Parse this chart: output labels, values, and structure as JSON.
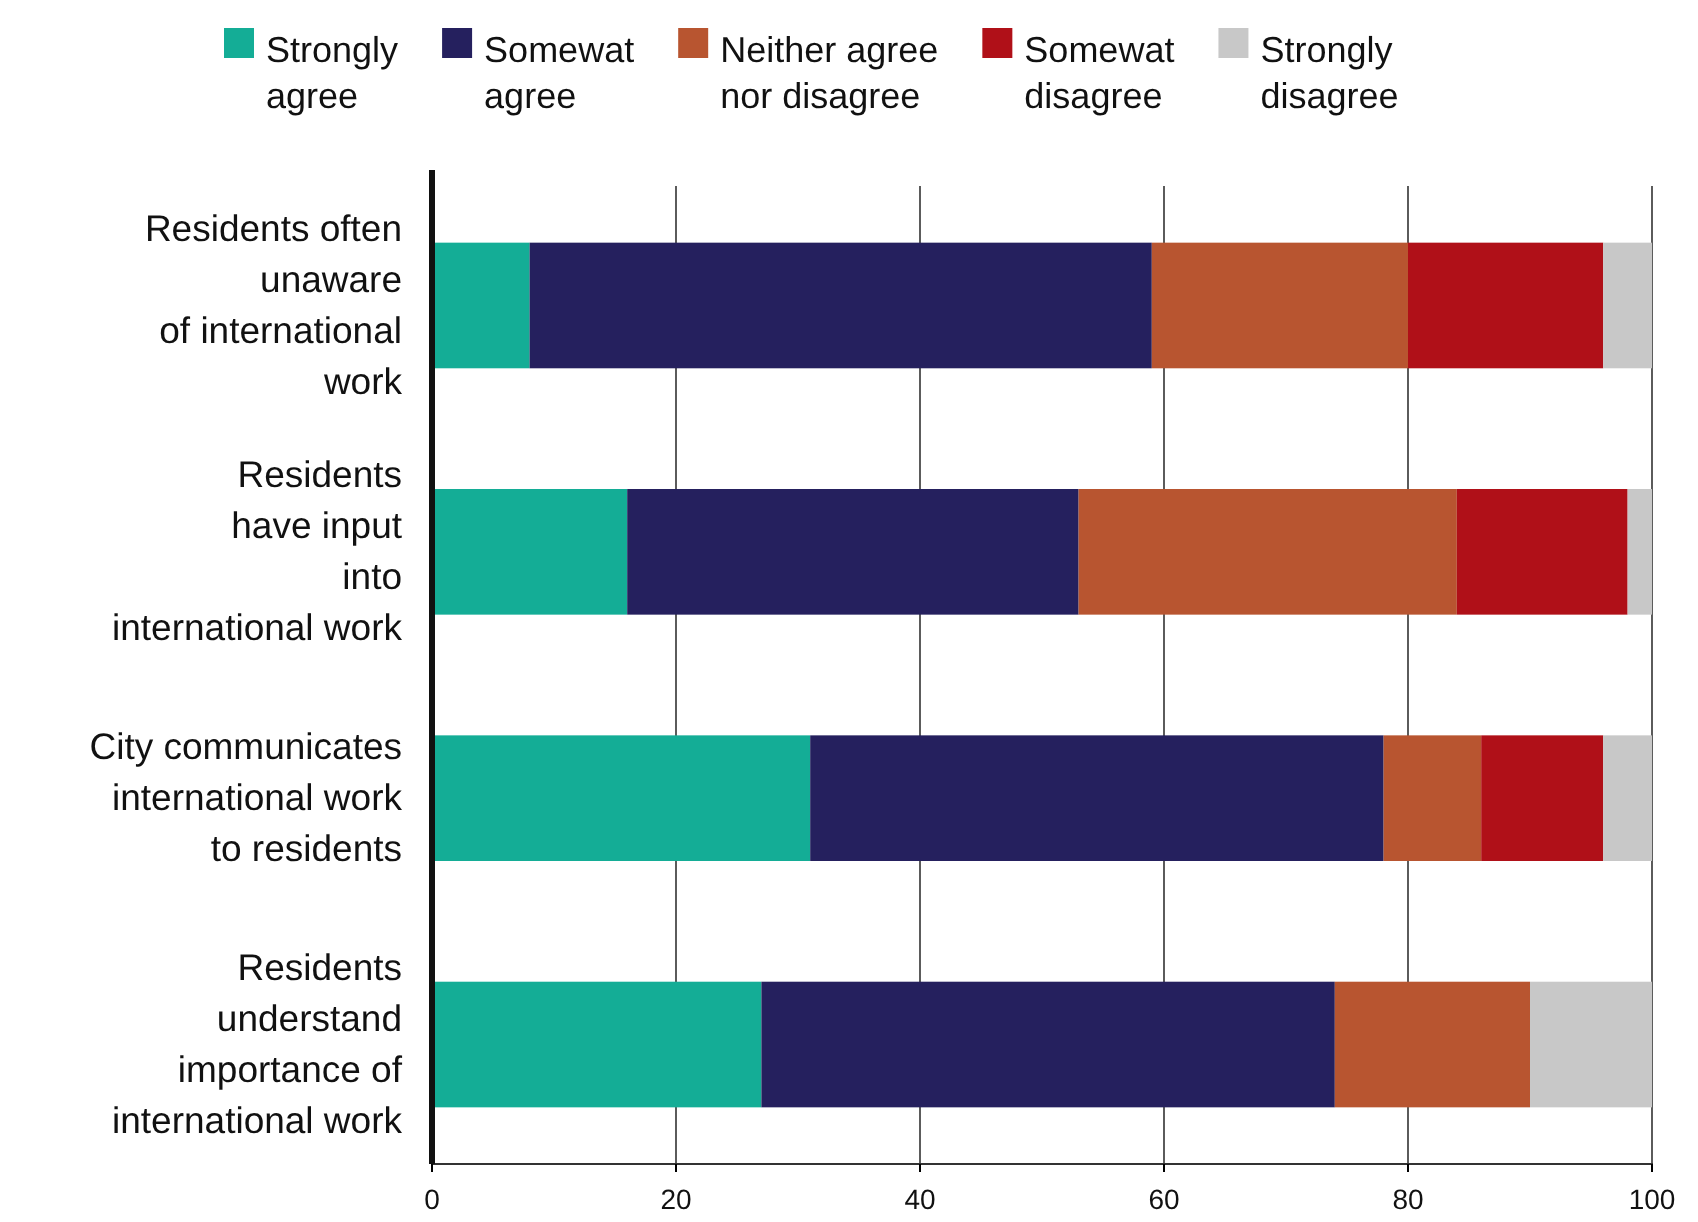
{
  "chart_data": {
    "type": "bar",
    "orientation": "horizontal",
    "stacked": true,
    "categories": [
      "Residents often\nunaware\nof international\nwork",
      "Residents\nhave input\ninto\ninternational work",
      "City communicates\ninternational work\nto residents",
      "Residents\nunderstand\nimportance of\ninternational work"
    ],
    "series": [
      {
        "name": "Strongly\nagree",
        "color": "#14ad96",
        "values": [
          8,
          16,
          31,
          27
        ]
      },
      {
        "name": "Somewat\nagree",
        "color": "#25205e",
        "values": [
          51,
          37,
          47,
          47
        ]
      },
      {
        "name": "Neither agree\nnor disagree",
        "color": "#b85530",
        "values": [
          21,
          31,
          8,
          16
        ]
      },
      {
        "name": "Somewat\ndisagree",
        "color": "#b01018",
        "values": [
          16,
          14,
          10,
          0
        ]
      },
      {
        "name": "Strongly\ndisagree",
        "color": "#c8c8c8",
        "values": [
          4,
          2,
          4,
          10
        ]
      }
    ],
    "xlim": [
      0,
      100
    ],
    "xticks": [
      0,
      20,
      40,
      60,
      80,
      100
    ],
    "grid": "x",
    "legend": "top"
  }
}
